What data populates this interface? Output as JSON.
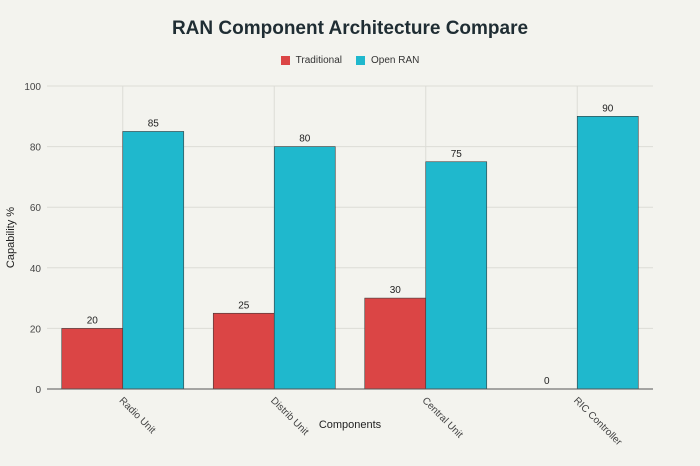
{
  "chart_data": {
    "type": "bar",
    "title": "RAN Component Architecture Compare",
    "xlabel": "Components",
    "ylabel": "Capability %",
    "categories": [
      "Radio Unit",
      "Distrib Unit",
      "Central Unit",
      "RIC Controller"
    ],
    "series": [
      {
        "name": "Traditional",
        "values": [
          20,
          25,
          30,
          0
        ],
        "color": "#db4545"
      },
      {
        "name": "Open RAN",
        "values": [
          85,
          80,
          75,
          90
        ],
        "color": "#1fb8cd"
      }
    ],
    "ylim": [
      0,
      100
    ],
    "yticks": [
      0,
      20,
      40,
      60,
      80,
      100
    ],
    "grid": true,
    "legend_position": "top-center",
    "data_labels": true
  },
  "colors": {
    "background": "#f3f3ee",
    "grid": "#dcdcd6",
    "axis": "#555555"
  }
}
